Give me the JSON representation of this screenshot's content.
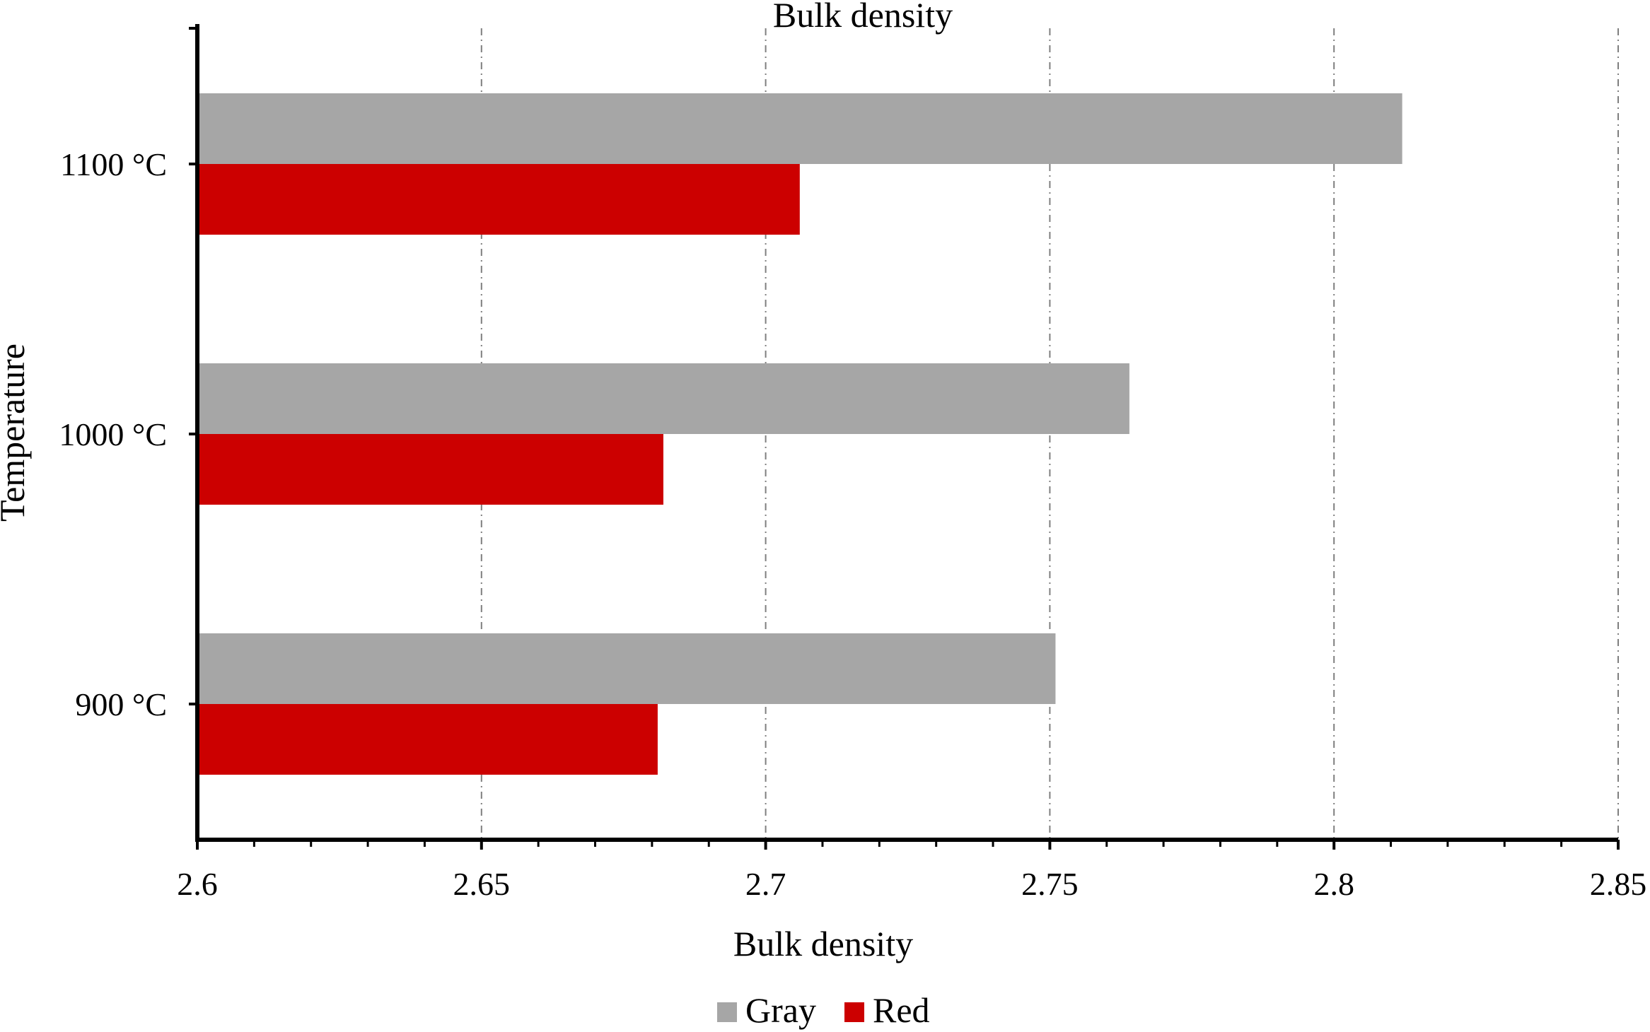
{
  "chart_data": {
    "type": "bar",
    "orientation": "horizontal",
    "title": "Bulk density",
    "xlabel": "Bulk density",
    "ylabel": "Temperature",
    "categories": [
      "900 °C",
      "1000 °C",
      "1100 °C"
    ],
    "series": [
      {
        "name": "Gray",
        "color": "#A6A6A6",
        "values": [
          2.751,
          2.764,
          2.812
        ]
      },
      {
        "name": "Red",
        "color": "#CC0000",
        "values": [
          2.681,
          2.682,
          2.706
        ]
      }
    ],
    "xlim": [
      2.6,
      2.85
    ],
    "xticks": [
      "2.6",
      "2.65",
      "2.7",
      "2.75",
      "2.8",
      "2.85"
    ],
    "grid": "vertical dashed",
    "legend_position": "bottom"
  }
}
